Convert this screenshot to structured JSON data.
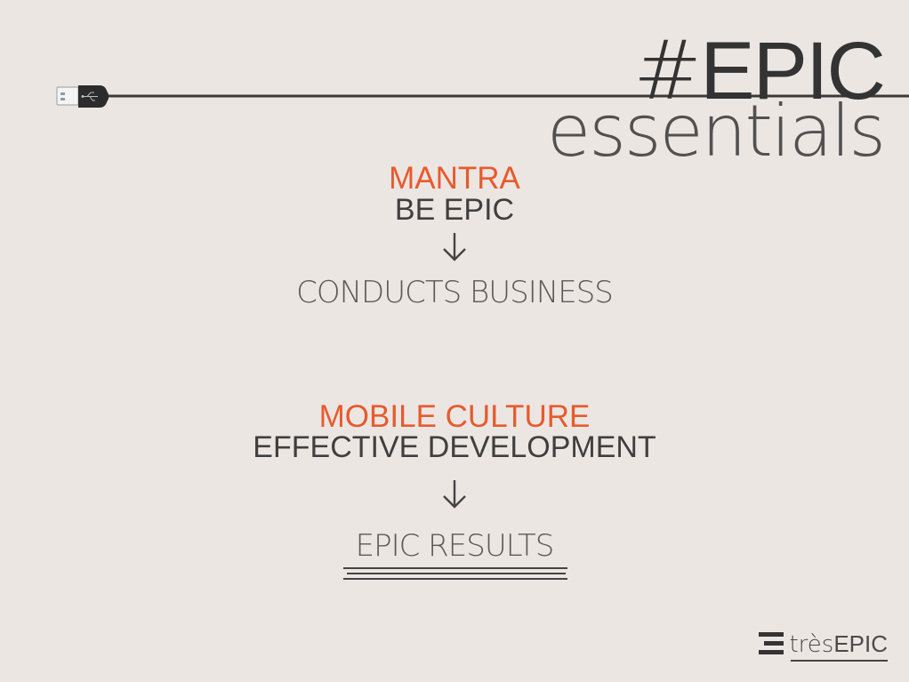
{
  "title": {
    "hash": "#",
    "epic": "EPIC",
    "subtitle": "essentials"
  },
  "section1": {
    "label": "MANTRA",
    "line": "BE EPIC",
    "result": "CONDUCTS BUSINESS"
  },
  "section2": {
    "label": "MOBILE CULTURE",
    "line": "EFFECTIVE DEVELOPMENT",
    "result": "EPIC RESULTS"
  },
  "logo": {
    "tres": "très",
    "epic": "EPIC"
  },
  "colors": {
    "background": "#ece6e3",
    "accent": "#e65b2e",
    "text": "#3f3f3f"
  },
  "icons": [
    "usb-plug-icon",
    "down-arrow-icon",
    "tresepic-logo-icon"
  ]
}
